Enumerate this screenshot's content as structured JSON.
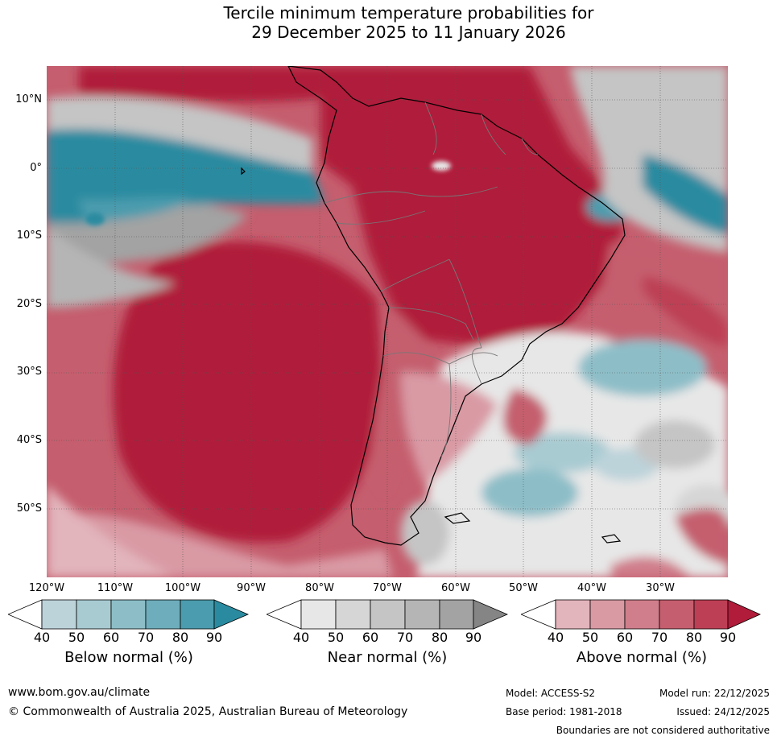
{
  "title": {
    "line1": "Tercile minimum temperature probabilities for",
    "line2": "29 December 2025 to 11 January 2026"
  },
  "map": {
    "lat_labels": [
      "10°N",
      "0°",
      "10°S",
      "20°S",
      "30°S",
      "40°S",
      "50°S"
    ],
    "lon_labels": [
      "120°W",
      "110°W",
      "100°W",
      "90°W",
      "80°W",
      "70°W",
      "60°W",
      "50°W",
      "40°W",
      "30°W"
    ],
    "lat_range": [
      -60,
      15
    ],
    "lon_range": [
      -120,
      -20
    ]
  },
  "legend": {
    "below": {
      "title": "Below normal (%)",
      "ticks": [
        "40",
        "50",
        "60",
        "70",
        "80",
        "90"
      ],
      "colors": [
        "#ffffff",
        "#bcd3da",
        "#a8cbd2",
        "#8dbec8",
        "#6eadbb",
        "#4b9cae",
        "#2a8ba0"
      ]
    },
    "near": {
      "title": "Near normal (%)",
      "ticks": [
        "40",
        "50",
        "60",
        "70",
        "80",
        "90"
      ],
      "colors": [
        "#ffffff",
        "#e7e7e7",
        "#d6d6d6",
        "#c5c5c5",
        "#b5b5b5",
        "#a3a3a3",
        "#858585"
      ]
    },
    "above": {
      "title": "Above normal (%)",
      "ticks": [
        "40",
        "50",
        "60",
        "70",
        "80",
        "90"
      ],
      "colors": [
        "#ffffff",
        "#e2b4bb",
        "#d99aa4",
        "#d07e8b",
        "#c55e6e",
        "#bd3f55",
        "#b01c3a"
      ]
    }
  },
  "footer": {
    "website": "www.bom.gov.au/climate",
    "copyright": "© Commonwealth of Australia 2025, Australian Bureau of Meteorology",
    "model": "Model: ACCESS-S2",
    "model_run": "Model run: 22/12/2025",
    "base_period": "Base period: 1981-2018",
    "issued": "Issued: 24/12/2025",
    "disclaimer": "Boundaries are not considered authoritative"
  }
}
